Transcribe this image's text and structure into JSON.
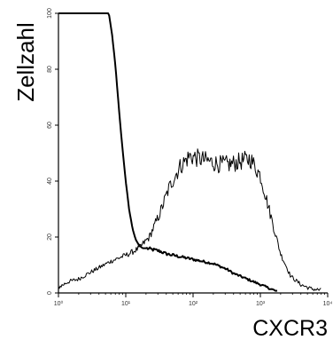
{
  "chart_data": {
    "type": "line",
    "title": "",
    "xlabel": "CXCR3",
    "ylabel": "Zellzahl",
    "x_scale": "log",
    "xlim": [
      1,
      10000
    ],
    "ylim": [
      0,
      100
    ],
    "x_ticks": [
      1,
      10,
      100,
      1000,
      10000
    ],
    "x_tick_labels": [
      "10⁰",
      "10¹",
      "10²",
      "10³",
      "10⁴"
    ],
    "y_ticks": [
      0,
      20,
      40,
      60,
      80,
      100
    ],
    "y_tick_labels": [
      "0",
      "20",
      "40",
      "60",
      "80",
      "100"
    ],
    "grid": false,
    "legend": "none",
    "series": [
      {
        "style": "solid-thick",
        "color": "#000000",
        "x": [
          1.0,
          5.6,
          6.3,
          7.1,
          7.9,
          8.9,
          10.0,
          11.2,
          12.6,
          14.1,
          15.8,
          17.8,
          20.0,
          25.1,
          31.6,
          39.8,
          50.1,
          63.1,
          79.4,
          100,
          126,
          158,
          200,
          251,
          316,
          398,
          501,
          631,
          794,
          1000,
          1259,
          1585,
          1778
        ],
        "y": [
          100,
          100,
          92,
          80,
          66,
          52,
          40,
          30,
          23,
          19,
          17,
          16,
          16,
          15.5,
          15,
          14,
          13.5,
          13,
          12.5,
          12,
          11.5,
          11,
          10.5,
          9.5,
          8.5,
          7,
          6,
          5,
          4,
          3,
          2,
          1,
          0.5
        ]
      },
      {
        "style": "thin-noisy",
        "color": "#000000",
        "x": [
          1.0,
          1.4,
          2.0,
          2.8,
          4.0,
          5.6,
          7.9,
          11.2,
          15.8,
          22.4,
          31.6,
          44.7,
          63.1,
          89.1,
          126,
          178,
          251,
          355,
          501,
          708,
          1000,
          1413,
          1995,
          2818,
          3981,
          5623,
          7943
        ],
        "y": [
          2,
          4,
          5,
          7,
          9,
          11,
          12.5,
          14,
          16,
          20,
          28,
          38,
          45,
          49,
          48,
          47,
          46,
          46,
          47,
          48,
          42,
          28,
          14,
          6,
          3,
          1.5,
          1
        ]
      }
    ]
  }
}
